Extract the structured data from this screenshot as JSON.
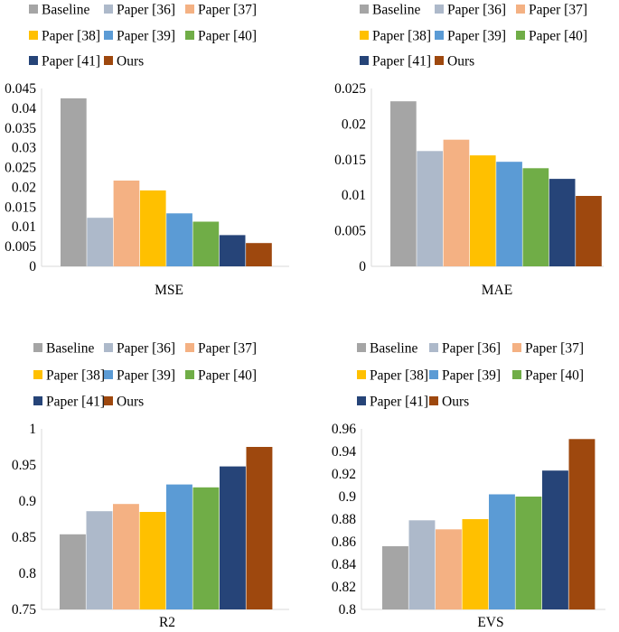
{
  "legend": [
    {
      "name": "Baseline",
      "color": "#a5a5a5"
    },
    {
      "name": "Paper [36]",
      "color": "#adb9ca"
    },
    {
      "name": "Paper [37]",
      "color": "#f4b183"
    },
    {
      "name": "Paper [38]",
      "color": "#ffc000"
    },
    {
      "name": "Paper [39]",
      "color": "#5b9bd5"
    },
    {
      "name": "Paper [40]",
      "color": "#70ad47"
    },
    {
      "name": "Paper [41]",
      "color": "#264478"
    },
    {
      "name": "Ours",
      "color": "#9e480e"
    }
  ],
  "chart_data": [
    {
      "type": "bar",
      "xlabel": "MSE",
      "categories": [
        "Baseline",
        "Paper [36]",
        "Paper [37]",
        "Paper [38]",
        "Paper [39]",
        "Paper [40]",
        "Paper [41]",
        "Ours"
      ],
      "values": [
        0.0425,
        0.0123,
        0.0217,
        0.0192,
        0.0134,
        0.0113,
        0.0079,
        0.0059
      ],
      "ylim": [
        0,
        0.045
      ],
      "ticks": [
        "0",
        "0.005",
        "0.01",
        "0.015",
        "0.02",
        "0.025",
        "0.03",
        "0.035",
        "0.04",
        "0.045"
      ],
      "tick_values": [
        0,
        0.005,
        0.01,
        0.015,
        0.02,
        0.025,
        0.03,
        0.035,
        0.04,
        0.045
      ]
    },
    {
      "type": "bar",
      "xlabel": "MAE",
      "categories": [
        "Baseline",
        "Paper [36]",
        "Paper [37]",
        "Paper [38]",
        "Paper [39]",
        "Paper [40]",
        "Paper [41]",
        "Ours"
      ],
      "values": [
        0.0232,
        0.0162,
        0.0178,
        0.0156,
        0.0147,
        0.0138,
        0.0123,
        0.0099
      ],
      "ylim": [
        0,
        0.025
      ],
      "ticks": [
        "0",
        "0.005",
        "0.01",
        "0.015",
        "0.02",
        "0.025"
      ],
      "tick_values": [
        0,
        0.005,
        0.01,
        0.015,
        0.02,
        0.025
      ]
    },
    {
      "type": "bar",
      "xlabel": "R2",
      "categories": [
        "Baseline",
        "Paper [36]",
        "Paper [37]",
        "Paper [38]",
        "Paper [39]",
        "Paper [40]",
        "Paper [41]",
        "Ours"
      ],
      "values": [
        0.854,
        0.886,
        0.896,
        0.885,
        0.923,
        0.919,
        0.948,
        0.975
      ],
      "ylim": [
        0.75,
        1
      ],
      "ticks": [
        "0.75",
        "0.8",
        "0.85",
        "0.9",
        "0.95",
        "1"
      ],
      "tick_values": [
        0.75,
        0.8,
        0.85,
        0.9,
        0.95,
        1
      ]
    },
    {
      "type": "bar",
      "xlabel": "EVS",
      "categories": [
        "Baseline",
        "Paper [36]",
        "Paper [37]",
        "Paper [38]",
        "Paper [39]",
        "Paper [40]",
        "Paper [41]",
        "Ours"
      ],
      "values": [
        0.856,
        0.879,
        0.871,
        0.88,
        0.902,
        0.9,
        0.923,
        0.951
      ],
      "ylim": [
        0.8,
        0.96
      ],
      "ticks": [
        "0.8",
        "0.82",
        "0.84",
        "0.86",
        "0.88",
        "0.9",
        "0.92",
        "0.94",
        "0.96"
      ],
      "tick_values": [
        0.8,
        0.82,
        0.84,
        0.86,
        0.88,
        0.9,
        0.92,
        0.94,
        0.96
      ]
    }
  ]
}
